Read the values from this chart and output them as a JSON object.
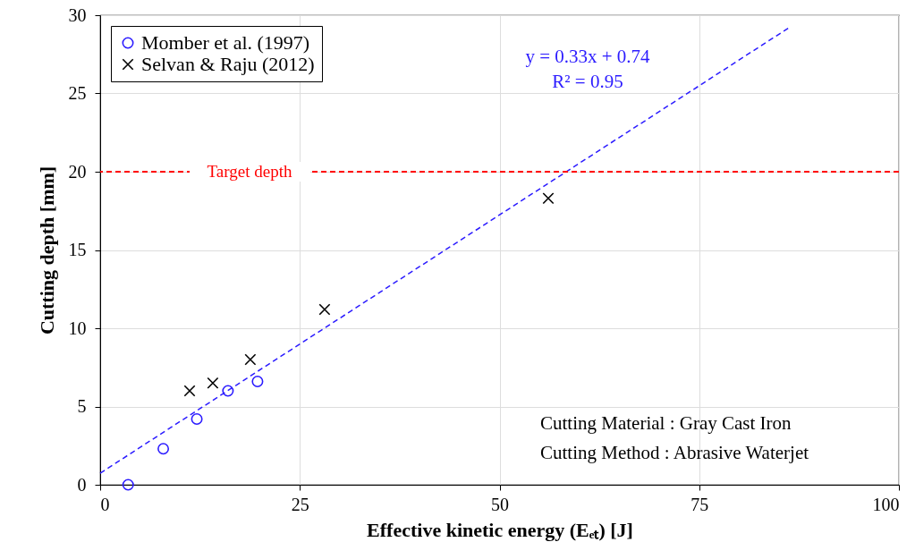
{
  "chart_data": {
    "type": "scatter",
    "xlabel": "Effective kinetic energy (Eₑₜ) [J]",
    "ylabel": "Cutting depth [mm]",
    "xlim": [
      0,
      100
    ],
    "xticks": [
      0,
      25,
      50,
      75,
      100
    ],
    "ylim": [
      0,
      30
    ],
    "yticks": [
      0,
      5,
      10,
      15,
      20,
      25,
      30
    ],
    "grid": true,
    "legend": "top left",
    "series": [
      {
        "name": "Momber et al. (1997)",
        "color": "#2b1bff",
        "marker": "circle",
        "x": [
          3.5,
          7.9,
          12.1,
          16.0,
          19.7
        ],
        "values": [
          0,
          2.3,
          4.2,
          6.0,
          6.6
        ]
      },
      {
        "name": "Selvan & Raju (2012)",
        "color": "#000000",
        "marker": "cross",
        "x": [
          11.2,
          14.1,
          18.8,
          28.1,
          56.1
        ],
        "values": [
          6.0,
          6.5,
          8.0,
          11.2,
          18.3
        ]
      },
      {
        "type": "line",
        "color": "#2b1bff",
        "line_style": "dashed",
        "x": [
          0,
          86.2
        ],
        "values": [
          0.74,
          29.19
        ]
      }
    ],
    "ref_lines": [
      {
        "axis": "y",
        "value": 20,
        "label": "Target depth",
        "color": "#ff0000",
        "line_style": "dashed"
      }
    ],
    "annotations": [
      "y = 0.33x + 0.74",
      "R² = 0.95",
      "Cutting Material : Gray Cast Iron",
      "Cutting Method : Abrasive Waterjet"
    ]
  }
}
